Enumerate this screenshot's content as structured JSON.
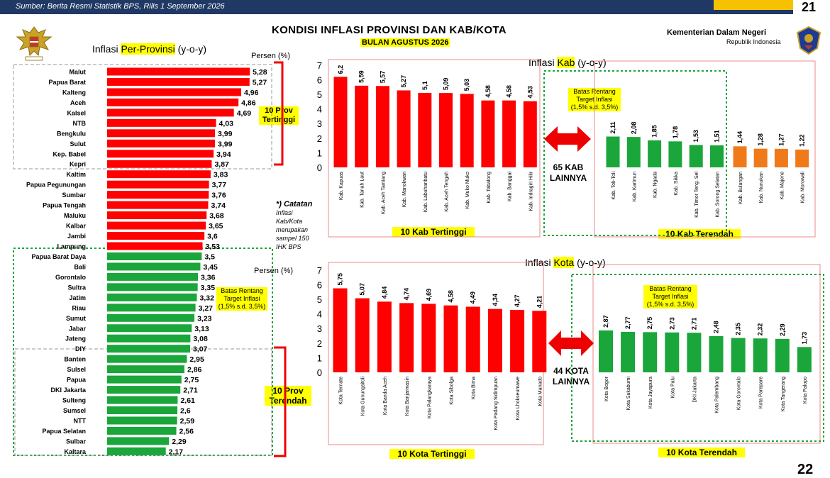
{
  "header": {
    "source": "Sumber: Berita Resmi Statistik BPS, Rilis 1 September 2026",
    "page_number": "21",
    "next_page_number": "22"
  },
  "title": {
    "main": "KONDISI INFLASI PROVINSI DAN KAB/KOTA",
    "sub": "BULAN AGUSTUS 2026"
  },
  "ministry": {
    "name": "Kementerian Dalam Negeri",
    "sub": "Republik Indonesia"
  },
  "labels": {
    "prov_title_a": "Inflasi ",
    "prov_title_b": "Per-Provinsi",
    "prov_title_c": " (y-o-y)",
    "persen": "Persen (%)",
    "persen2": "Persen (%)",
    "prov_high": "10 Prov\nTertinggi",
    "prov_low": "10 Prov\nTerendah",
    "target_prov": "Batas Rentang\nTarget Inflasi\n(1,5% s.d. 3,5%)",
    "note_title": "*) Catatan",
    "note_body": "Inflasi Kab/Kota merupakan sampel 150 IHK BPS",
    "kab_title_a": "Inflasi ",
    "kab_title_b": "Kab",
    "kab_title_c": " (y-o-y)",
    "kota_title_a": "Inflasi ",
    "kota_title_b": "Kota",
    "kota_title_c": " (y-o-y)",
    "kab_target": "Batas Rentang\nTarget Inflasi\n(1,5% s.d. 3,5%)",
    "kota_target": "Batas Rentang\nTarget Inflasi\n(1,5% s.d. 3,5%)",
    "kab_lainnya": "65 KAB\nLAINNYA",
    "kota_lainnya": "44 KOTA\nLAINNYA",
    "kab_high": "10 Kab Tertinggi",
    "kab_low": "10 Kab Terendah",
    "kota_high": "10 Kota Tertinggi",
    "kota_low": "10 Kota Terendah"
  },
  "colors": {
    "red": "#ff0000",
    "green": "#1aa63a",
    "orange": "#f07a1a",
    "navy": "#1f3864",
    "yellow": "#ffff00"
  },
  "chart_data": [
    {
      "type": "bar",
      "orientation": "horizontal",
      "title": "Inflasi Per-Provinsi (y-o-y)",
      "unit": "Persen (%)",
      "categories": [
        "Malut",
        "Papua Barat",
        "Kalteng",
        "Aceh",
        "Kalsel",
        "NTB",
        "Bengkulu",
        "Sulut",
        "Kep. Babel",
        "Kepri",
        "Kaltim",
        "Papua Pegunungan",
        "Sumbar",
        "Papua Tengah",
        "Maluku",
        "Kalbar",
        "Jambi",
        "Lampung",
        "Papua Barat Daya",
        "Bali",
        "Gorontalo",
        "Sultra",
        "Jatim",
        "Riau",
        "Sumut",
        "Jabar",
        "Jateng",
        "DIY",
        "Banten",
        "Sulsel",
        "Papua",
        "DKI Jakarta",
        "Sulteng",
        "Sumsel",
        "NTT",
        "Papua Selatan",
        "Sulbar",
        "Kaltara"
      ],
      "values": [
        5.28,
        5.27,
        4.96,
        4.86,
        4.69,
        4.03,
        3.99,
        3.99,
        3.94,
        3.87,
        3.83,
        3.77,
        3.76,
        3.74,
        3.68,
        3.65,
        3.6,
        3.53,
        3.5,
        3.45,
        3.36,
        3.35,
        3.32,
        3.27,
        3.23,
        3.13,
        3.08,
        3.07,
        2.95,
        2.86,
        2.75,
        2.71,
        2.61,
        2.6,
        2.59,
        2.56,
        2.29,
        2.17
      ],
      "value_labels": [
        "5,28",
        "5,27",
        "4,96",
        "4,86",
        "4,69",
        "4,03",
        "3,99",
        "3,99",
        "3,94",
        "3,87",
        "3,83",
        "3,77",
        "3,76",
        "3,74",
        "3,68",
        "3,65",
        "3,6",
        "3,53",
        "3,5",
        "3,45",
        "3,36",
        "3,35",
        "3,32",
        "3,27",
        "3,23",
        "3,13",
        "3,08",
        "3,07",
        "2,95",
        "2,86",
        "2,75",
        "2,71",
        "2,61",
        "2,6",
        "2,59",
        "2,56",
        "2,29",
        "2,17"
      ],
      "colors": [
        "red",
        "red",
        "red",
        "red",
        "red",
        "red",
        "red",
        "red",
        "red",
        "red",
        "red",
        "red",
        "red",
        "red",
        "red",
        "red",
        "red",
        "red",
        "green",
        "green",
        "green",
        "green",
        "green",
        "green",
        "green",
        "green",
        "green",
        "green",
        "green",
        "green",
        "green",
        "green",
        "green",
        "green",
        "green",
        "green",
        "green",
        "green"
      ]
    },
    {
      "type": "bar",
      "title": "Inflasi Kab (y-o-y)",
      "ylim": [
        0,
        7
      ],
      "yticks": [
        0,
        1,
        2,
        3,
        4,
        5,
        6,
        7
      ],
      "categories": [
        "Kab. Kapuas",
        "Kab. Tanah Laut",
        "Kab. Aceh Tamiang",
        "Kab. Manokwari",
        "Kab. Labuhanbatu",
        "Kab. Aceh Tengah",
        "Kab. Muko Muko",
        "Kab. Tabalong",
        "Kab. Banggai",
        "Kab. Indragiri Hilir",
        "Kab. Toli-Toli",
        "Kab. Karimun",
        "Kab. Ngada",
        "Kab. Sikka",
        "Kab. Timor Teng. Sel",
        "Kab. Sorong Selatan",
        "Kab. Bulungan",
        "Kab. Nunukan",
        "Kab. Majene",
        "Kab. Morowali"
      ],
      "values": [
        6.2,
        5.59,
        5.57,
        5.27,
        5.1,
        5.09,
        5.03,
        4.58,
        4.58,
        4.53,
        2.11,
        2.08,
        1.85,
        1.78,
        1.53,
        1.51,
        1.44,
        1.28,
        1.27,
        1.22
      ],
      "value_labels": [
        "6,2",
        "5,59",
        "5,57",
        "5,27",
        "5,1",
        "5,09",
        "5,03",
        "4,58",
        "4,58",
        "4,53",
        "2,11",
        "2,08",
        "1,85",
        "1,78",
        "1,53",
        "1,51",
        "1,44",
        "1,28",
        "1,27",
        "1,22"
      ],
      "colors": [
        "red",
        "red",
        "red",
        "red",
        "red",
        "red",
        "red",
        "red",
        "red",
        "red",
        "green",
        "green",
        "green",
        "green",
        "green",
        "green",
        "orange",
        "orange",
        "orange",
        "orange"
      ]
    },
    {
      "type": "bar",
      "title": "Inflasi Kota (y-o-y)",
      "unit": "Persen (%)",
      "ylim": [
        0,
        7
      ],
      "yticks": [
        0,
        1,
        2,
        3,
        4,
        5,
        6,
        7
      ],
      "categories": [
        "Kota Ternate",
        "Kota Gunungsitoli",
        "Kota Banda Aceh",
        "Kota Banjarmasin",
        "Kota Palangkaraya",
        "Kota Sibolga",
        "Kota Bima",
        "Kota Padang Sidimpuan",
        "Kota Lhokseumawe",
        "Kota Manado",
        "Kota Bogor",
        "Kota Sukabumi",
        "Kota Jayapura",
        "Kota Palu",
        "DKI Jakarta",
        "Kota Palembang",
        "Kota Gorontalo",
        "Kota Parepare",
        "Kota Tangerang",
        "Kota Palopo"
      ],
      "values": [
        5.75,
        5.07,
        4.84,
        4.74,
        4.69,
        4.58,
        4.49,
        4.34,
        4.27,
        4.21,
        2.87,
        2.77,
        2.75,
        2.73,
        2.71,
        2.48,
        2.35,
        2.32,
        2.29,
        1.73
      ],
      "value_labels": [
        "5,75",
        "5,07",
        "4,84",
        "4,74",
        "4,69",
        "4,58",
        "4,49",
        "4,34",
        "4,27",
        "4,21",
        "2,87",
        "2,77",
        "2,75",
        "2,73",
        "2,71",
        "2,48",
        "2,35",
        "2,32",
        "2,29",
        "1,73"
      ],
      "colors": [
        "red",
        "red",
        "red",
        "red",
        "red",
        "red",
        "red",
        "red",
        "red",
        "red",
        "green",
        "green",
        "green",
        "green",
        "green",
        "green",
        "green",
        "green",
        "green",
        "green"
      ]
    }
  ]
}
